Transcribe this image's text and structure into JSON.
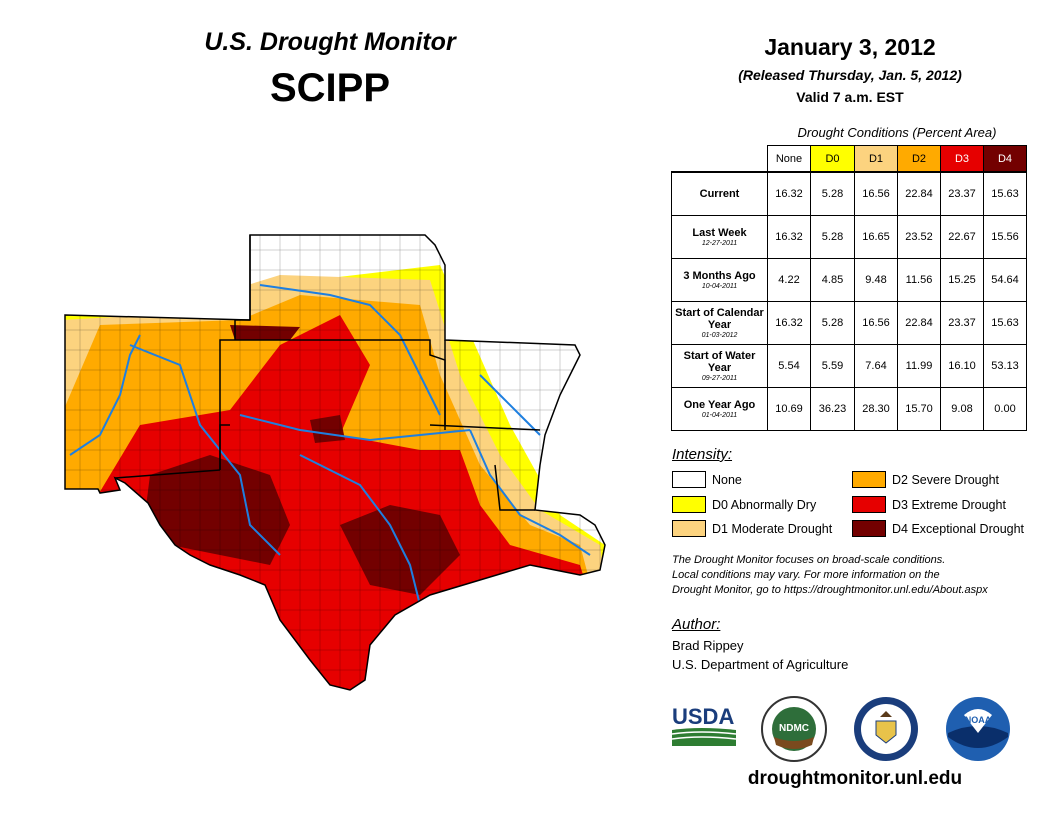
{
  "header": {
    "title": "U.S. Drought Monitor",
    "region": "SCIPP",
    "date": "January 3, 2012",
    "released": "(Released Thursday, Jan. 5, 2012)",
    "valid": "Valid 7 a.m. EST"
  },
  "conditions_table": {
    "caption": "Drought Conditions (Percent Area)",
    "columns": [
      "None",
      "D0",
      "D1",
      "D2",
      "D3",
      "D4"
    ],
    "rows": [
      {
        "label": "Current",
        "date": "",
        "values": [
          "16.32",
          "5.28",
          "16.56",
          "22.84",
          "23.37",
          "15.63"
        ]
      },
      {
        "label": "Last Week",
        "date": "12-27-2011",
        "values": [
          "16.32",
          "5.28",
          "16.65",
          "23.52",
          "22.67",
          "15.56"
        ]
      },
      {
        "label": "3 Months Ago",
        "date": "10-04-2011",
        "values": [
          "4.22",
          "4.85",
          "9.48",
          "11.56",
          "15.25",
          "54.64"
        ]
      },
      {
        "label": "Start of Calendar Year",
        "date": "01-03-2012",
        "values": [
          "16.32",
          "5.28",
          "16.56",
          "22.84",
          "23.37",
          "15.63"
        ]
      },
      {
        "label": "Start of Water Year",
        "date": "09-27-2011",
        "values": [
          "5.54",
          "5.59",
          "7.64",
          "11.99",
          "16.10",
          "53.13"
        ]
      },
      {
        "label": "One Year Ago",
        "date": "01-04-2011",
        "values": [
          "10.69",
          "36.23",
          "28.30",
          "15.70",
          "9.08",
          "0.00"
        ]
      }
    ]
  },
  "legend": {
    "title": "Intensity:",
    "items": [
      {
        "label": "None",
        "color": "#ffffff"
      },
      {
        "label": "D0 Abnormally Dry",
        "color": "#ffff00"
      },
      {
        "label": "D1 Moderate Drought",
        "color": "#fcd37f"
      },
      {
        "label": "D2 Severe Drought",
        "color": "#ffaa00"
      },
      {
        "label": "D3 Extreme Drought",
        "color": "#e60000"
      },
      {
        "label": "D4 Exceptional Drought",
        "color": "#730000"
      }
    ]
  },
  "column_colors": [
    "#ffffff",
    "#ffff00",
    "#fcd37f",
    "#ffaa00",
    "#e60000",
    "#730000"
  ],
  "column_text_colors": [
    "#000000",
    "#000000",
    "#000000",
    "#000000",
    "#ffffff",
    "#ffffff"
  ],
  "note": {
    "line1": "The Drought Monitor focuses on broad-scale conditions.",
    "line2": "Local conditions may vary. For more information on the",
    "line3": "Drought Monitor, go to https://droughtmonitor.unl.edu/About.aspx"
  },
  "author": {
    "title": "Author:",
    "name": "Brad Rippey",
    "org": "U.S. Department of Agriculture"
  },
  "logos": {
    "usda": "USDA",
    "ndmc": "NDMC",
    "noaa": "NOAA"
  },
  "website": "droughtmonitor.unl.edu"
}
